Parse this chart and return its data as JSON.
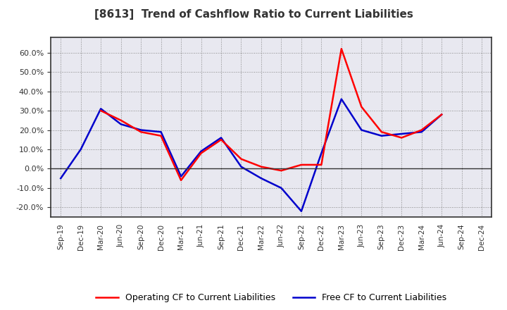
{
  "title": "[8613]  Trend of Cashflow Ratio to Current Liabilities",
  "x_labels": [
    "Sep-19",
    "Dec-19",
    "Mar-20",
    "Jun-20",
    "Sep-20",
    "Dec-20",
    "Mar-21",
    "Jun-21",
    "Sep-21",
    "Dec-21",
    "Mar-22",
    "Jun-22",
    "Sep-22",
    "Dec-22",
    "Mar-23",
    "Jun-23",
    "Sep-23",
    "Dec-23",
    "Mar-24",
    "Jun-24",
    "Sep-24",
    "Dec-24"
  ],
  "operating_cf": [
    null,
    null,
    0.3,
    0.25,
    0.19,
    0.17,
    -0.06,
    0.08,
    0.15,
    0.05,
    0.01,
    -0.01,
    0.02,
    0.02,
    0.62,
    0.32,
    0.19,
    0.16,
    0.2,
    0.28,
    null,
    null
  ],
  "free_cf": [
    -0.05,
    0.1,
    0.31,
    0.23,
    0.2,
    0.19,
    -0.04,
    0.09,
    0.16,
    0.01,
    -0.05,
    -0.1,
    -0.22,
    0.08,
    0.36,
    0.2,
    0.17,
    0.18,
    0.19,
    0.28,
    null,
    null
  ],
  "ylim": [
    -0.25,
    0.68
  ],
  "yticks": [
    -0.2,
    -0.1,
    0.0,
    0.1,
    0.2,
    0.3,
    0.4,
    0.5,
    0.6
  ],
  "operating_color": "#ff0000",
  "free_color": "#0000cc",
  "background_color": "#ffffff",
  "plot_bg_color": "#e8e8f0",
  "grid_color": "#888888",
  "title_color": "#333333",
  "legend_op": "Operating CF to Current Liabilities",
  "legend_free": "Free CF to Current Liabilities"
}
